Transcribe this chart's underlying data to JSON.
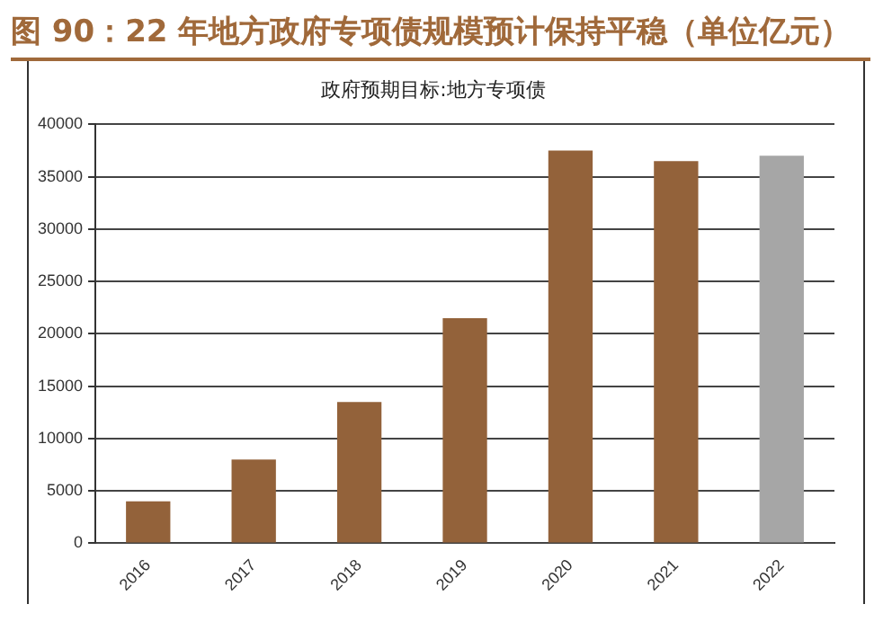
{
  "chart_data": {
    "type": "bar",
    "title": "图 90：22 年地方政府专项债规模预计保持平稳（单位亿元）",
    "subtitle": "政府预期目标:地方专项债",
    "categories": [
      "2016",
      "2017",
      "2018",
      "2019",
      "2020",
      "2021",
      "2022"
    ],
    "values": [
      4000,
      8000,
      13500,
      21500,
      37500,
      36500,
      37000
    ],
    "colors": [
      "#93623a",
      "#93623a",
      "#93623a",
      "#93623a",
      "#93623a",
      "#93623a",
      "#a6a6a6"
    ],
    "ylim": [
      0,
      40000
    ],
    "yticks": [
      0,
      5000,
      10000,
      15000,
      20000,
      25000,
      30000,
      35000,
      40000
    ],
    "grid": "y",
    "legend": false
  }
}
